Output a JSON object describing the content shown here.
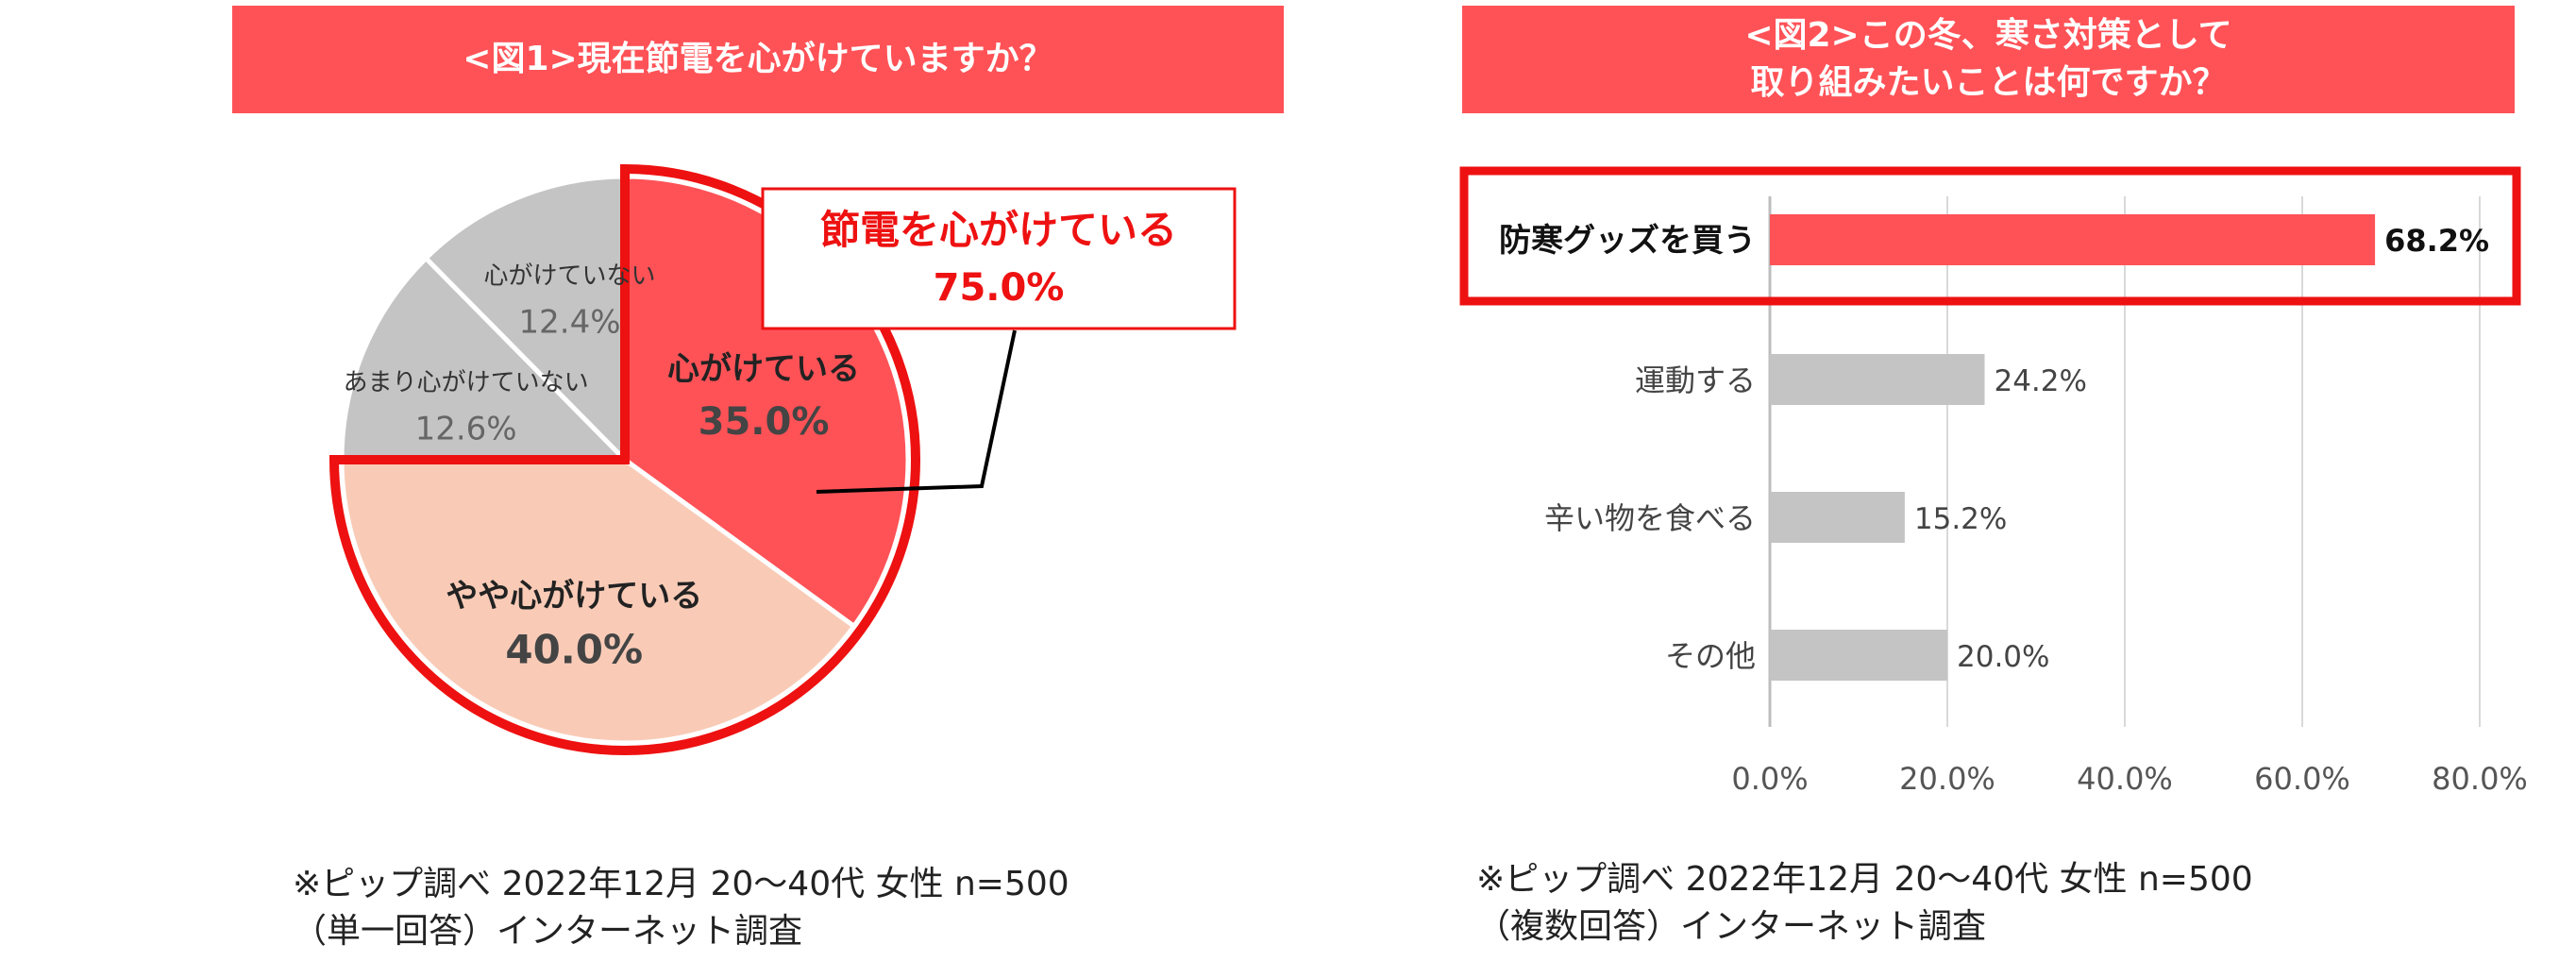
{
  "figure1": {
    "title": "<図1>現在節電を心がけていますか？",
    "callout": {
      "label": "節電を心がけている",
      "value": "75.0%"
    },
    "note_line1": "※ピップ調べ 2022年12月 20～40代 女性 n=500",
    "note_line2": "（単一回答）インターネット調査"
  },
  "figure2": {
    "title_line1": "<図2>この冬、寒さ対策として",
    "title_line2": "取り組みたいことは何ですか？",
    "note_line1": "※ピップ調べ 2022年12月 20～40代 女性 n=500",
    "note_line2": "（複数回答）インターネット調査"
  },
  "colors": {
    "accent": "#ff5257",
    "highlight_border": "#ee1111",
    "light_salmon": "#f9cbb7",
    "gray": "#c4c4c4",
    "dark_label": "#444444"
  },
  "chart_data": [
    {
      "type": "pie",
      "title": "<図1>現在節電を心がけていますか？",
      "slices": [
        {
          "label": "心がけている",
          "value": 35.0,
          "value_label": "35.0%",
          "color": "#ff5257",
          "highlight": true
        },
        {
          "label": "やや心がけている",
          "value": 40.0,
          "value_label": "40.0%",
          "color": "#f9cbb7",
          "highlight": true
        },
        {
          "label": "あまり心がけていない",
          "value": 12.6,
          "value_label": "12.6%",
          "color": "#c4c4c4",
          "highlight": false
        },
        {
          "label": "心がけていない",
          "value": 12.4,
          "value_label": "12.4%",
          "color": "#c4c4c4",
          "highlight": false
        }
      ],
      "start_angle_deg": 0,
      "direction": "clockwise"
    },
    {
      "type": "bar",
      "orientation": "horizontal",
      "title": "<図2>この冬、寒さ対策として取り組みたいことは何ですか？",
      "categories": [
        "防寒グッズを買う",
        "運動する",
        "辛い物を食べる",
        "その他"
      ],
      "values": [
        68.2,
        24.2,
        15.2,
        20.0
      ],
      "value_labels": [
        "68.2%",
        "24.2%",
        "15.2%",
        "20.0%"
      ],
      "highlight_index": 0,
      "xlim": [
        0,
        80
      ],
      "xticks": [
        0,
        20,
        40,
        60,
        80
      ],
      "xtick_labels": [
        "0.0%",
        "20.0%",
        "40.0%",
        "60.0%",
        "80.0%"
      ],
      "grid": true,
      "legend": false
    }
  ]
}
